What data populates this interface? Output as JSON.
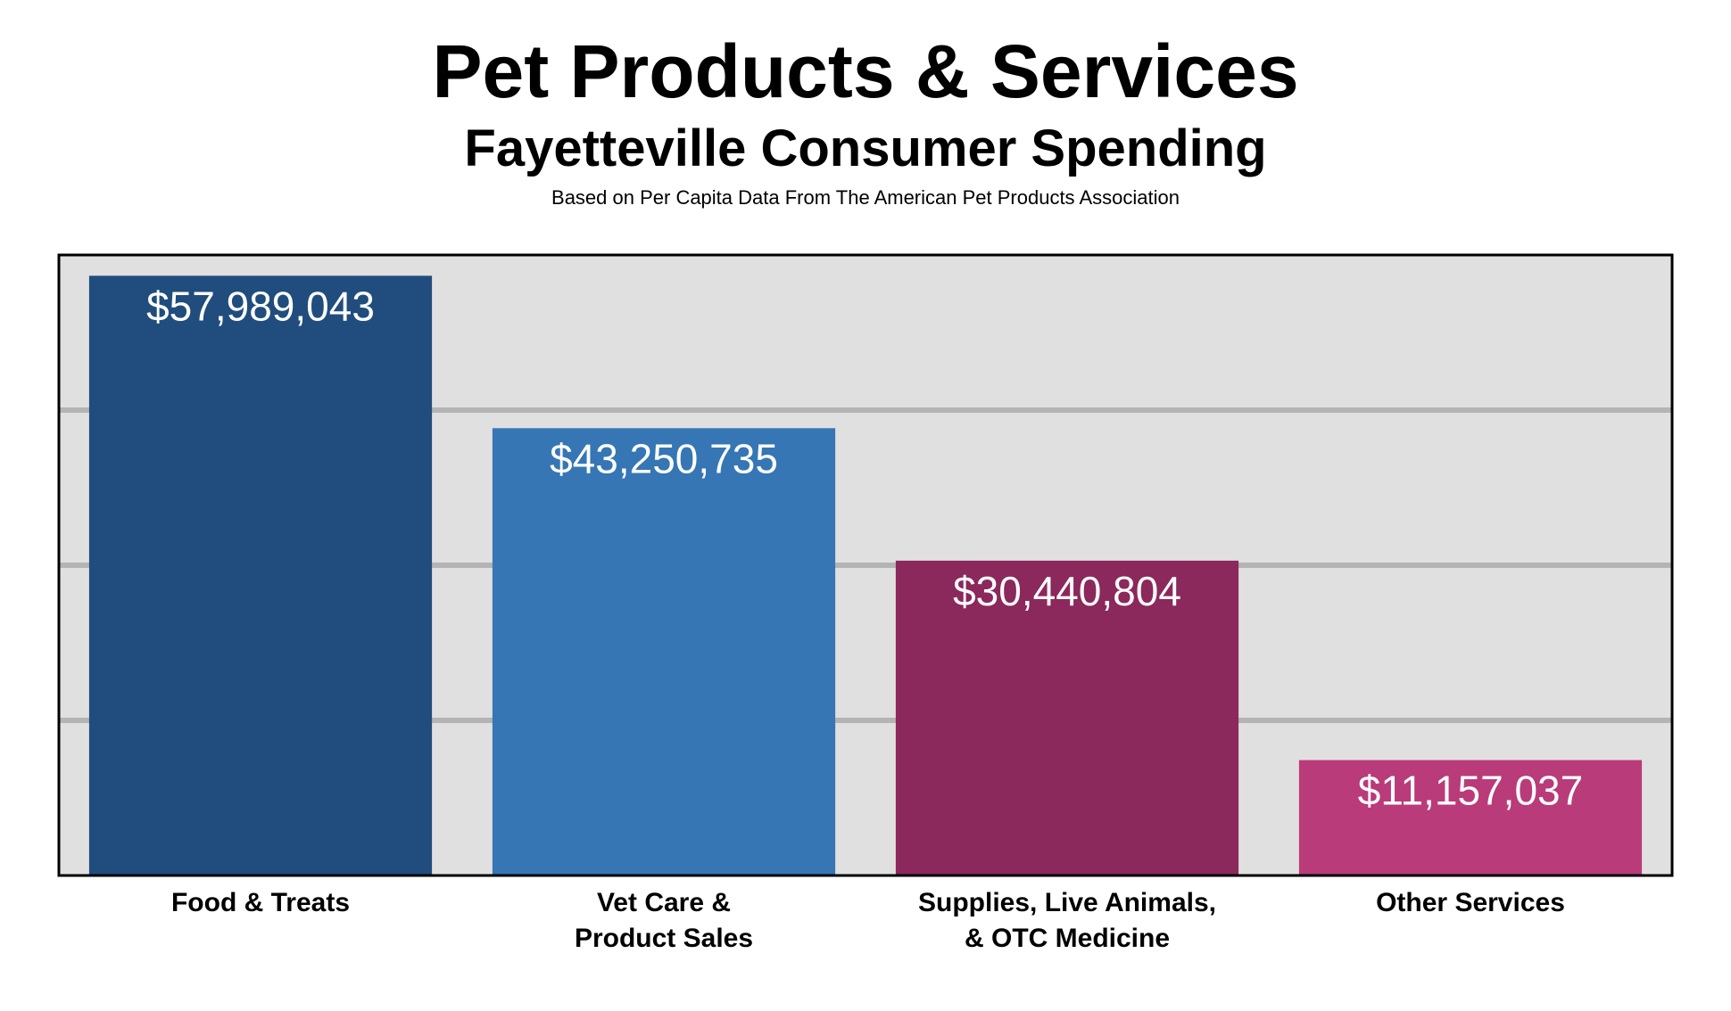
{
  "chart_data": {
    "type": "bar",
    "title": "Pet Products & Services",
    "subtitle": "Fayetteville Consumer Spending",
    "source_note": "Based on Per Capita Data From The American Pet Products Association",
    "categories": [
      [
        "Food & Treats"
      ],
      [
        "Vet Care &",
        "Product Sales"
      ],
      [
        "Supplies, Live Animals,",
        "& OTC Medicine"
      ],
      [
        "Other Services"
      ]
    ],
    "values": [
      57989043,
      43250735,
      30440804,
      11157037
    ],
    "data_labels": [
      "$57,989,043",
      "$43,250,735",
      "$30,440,804",
      "$11,157,037"
    ],
    "colors": [
      "#204d7d",
      "#3676b5",
      "#8b285c",
      "#b93b7a"
    ],
    "ylim": [
      0,
      60000000
    ],
    "gridlines": [
      15000000,
      30000000,
      45000000
    ],
    "grid": true,
    "plot_background": "#e0e0e0",
    "gridline_color": "#b4b4b4"
  }
}
